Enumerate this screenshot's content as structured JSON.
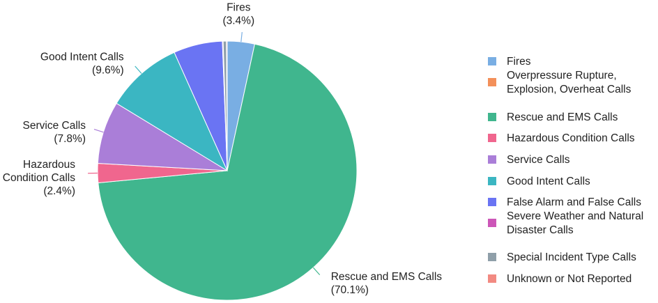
{
  "chart_data": {
    "type": "pie",
    "start_angle_deg": 0,
    "direction": "clockwise",
    "slices": [
      {
        "label": [
          "Fires"
        ],
        "value": 3.4,
        "pct_text": "(3.4%)",
        "color": "#79aee3",
        "show_label": true
      },
      {
        "label": [
          "Overpressure Rupture,",
          "Explosion, Overheat Calls"
        ],
        "value": 0.0,
        "pct_text": "",
        "color": "#f3905a",
        "show_label": false
      },
      {
        "label": [
          "Rescue and EMS Calls"
        ],
        "value": 70.1,
        "pct_text": "(70.1%)",
        "color": "#40b68e",
        "show_label": true
      },
      {
        "label": [
          "Hazardous Condition Calls"
        ],
        "value": 2.4,
        "pct_text": "(2.4%)",
        "color": "#f0668e",
        "show_label": true
      },
      {
        "label": [
          "Service Calls"
        ],
        "value": 7.8,
        "pct_text": "(7.8%)",
        "color": "#aa7ed8",
        "show_label": true
      },
      {
        "label": [
          "Good Intent Calls"
        ],
        "value": 9.6,
        "pct_text": "(9.6%)",
        "color": "#3bb6c2",
        "show_label": true
      },
      {
        "label": [
          "False Alarm and False Calls"
        ],
        "value": 6.1,
        "pct_text": "",
        "color": "#6a74f3",
        "show_label": false
      },
      {
        "label": [
          "Severe Weather and Natural",
          "Disaster Calls"
        ],
        "value": 0.1,
        "pct_text": "",
        "color": "#cc56b8",
        "show_label": false
      },
      {
        "label": [
          "Special Incident Type Calls"
        ],
        "value": 0.4,
        "pct_text": "",
        "color": "#8f9fa9",
        "show_label": false
      },
      {
        "label": [
          "Unknown or Not Reported"
        ],
        "value": 0.1,
        "pct_text": "",
        "color": "#f28a82",
        "show_label": false
      }
    ],
    "slice_labels": [
      {
        "index": 0,
        "lines": [
          "Fires",
          "(3.4%)"
        ]
      },
      {
        "index": 2,
        "lines": [
          "Rescue and EMS Calls",
          "(70.1%)"
        ]
      },
      {
        "index": 3,
        "lines": [
          "Hazardous",
          "Condition Calls",
          "(2.4%)"
        ]
      },
      {
        "index": 4,
        "lines": [
          "Service Calls",
          "(7.8%)"
        ]
      },
      {
        "index": 5,
        "lines": [
          "Good Intent Calls",
          "(9.6%)"
        ]
      }
    ],
    "legend": {
      "placement": "right",
      "entries": [
        [
          "Fires"
        ],
        [
          "Overpressure Rupture,",
          "Explosion, Overheat Calls"
        ],
        [
          "Rescue and EMS Calls"
        ],
        [
          "Hazardous Condition Calls"
        ],
        [
          "Service Calls"
        ],
        [
          "Good Intent Calls"
        ],
        [
          "False Alarm and False Calls"
        ],
        [
          "Severe Weather and Natural",
          "Disaster Calls"
        ],
        [
          "Special Incident Type Calls"
        ],
        [
          "Unknown or Not Reported"
        ]
      ]
    }
  }
}
